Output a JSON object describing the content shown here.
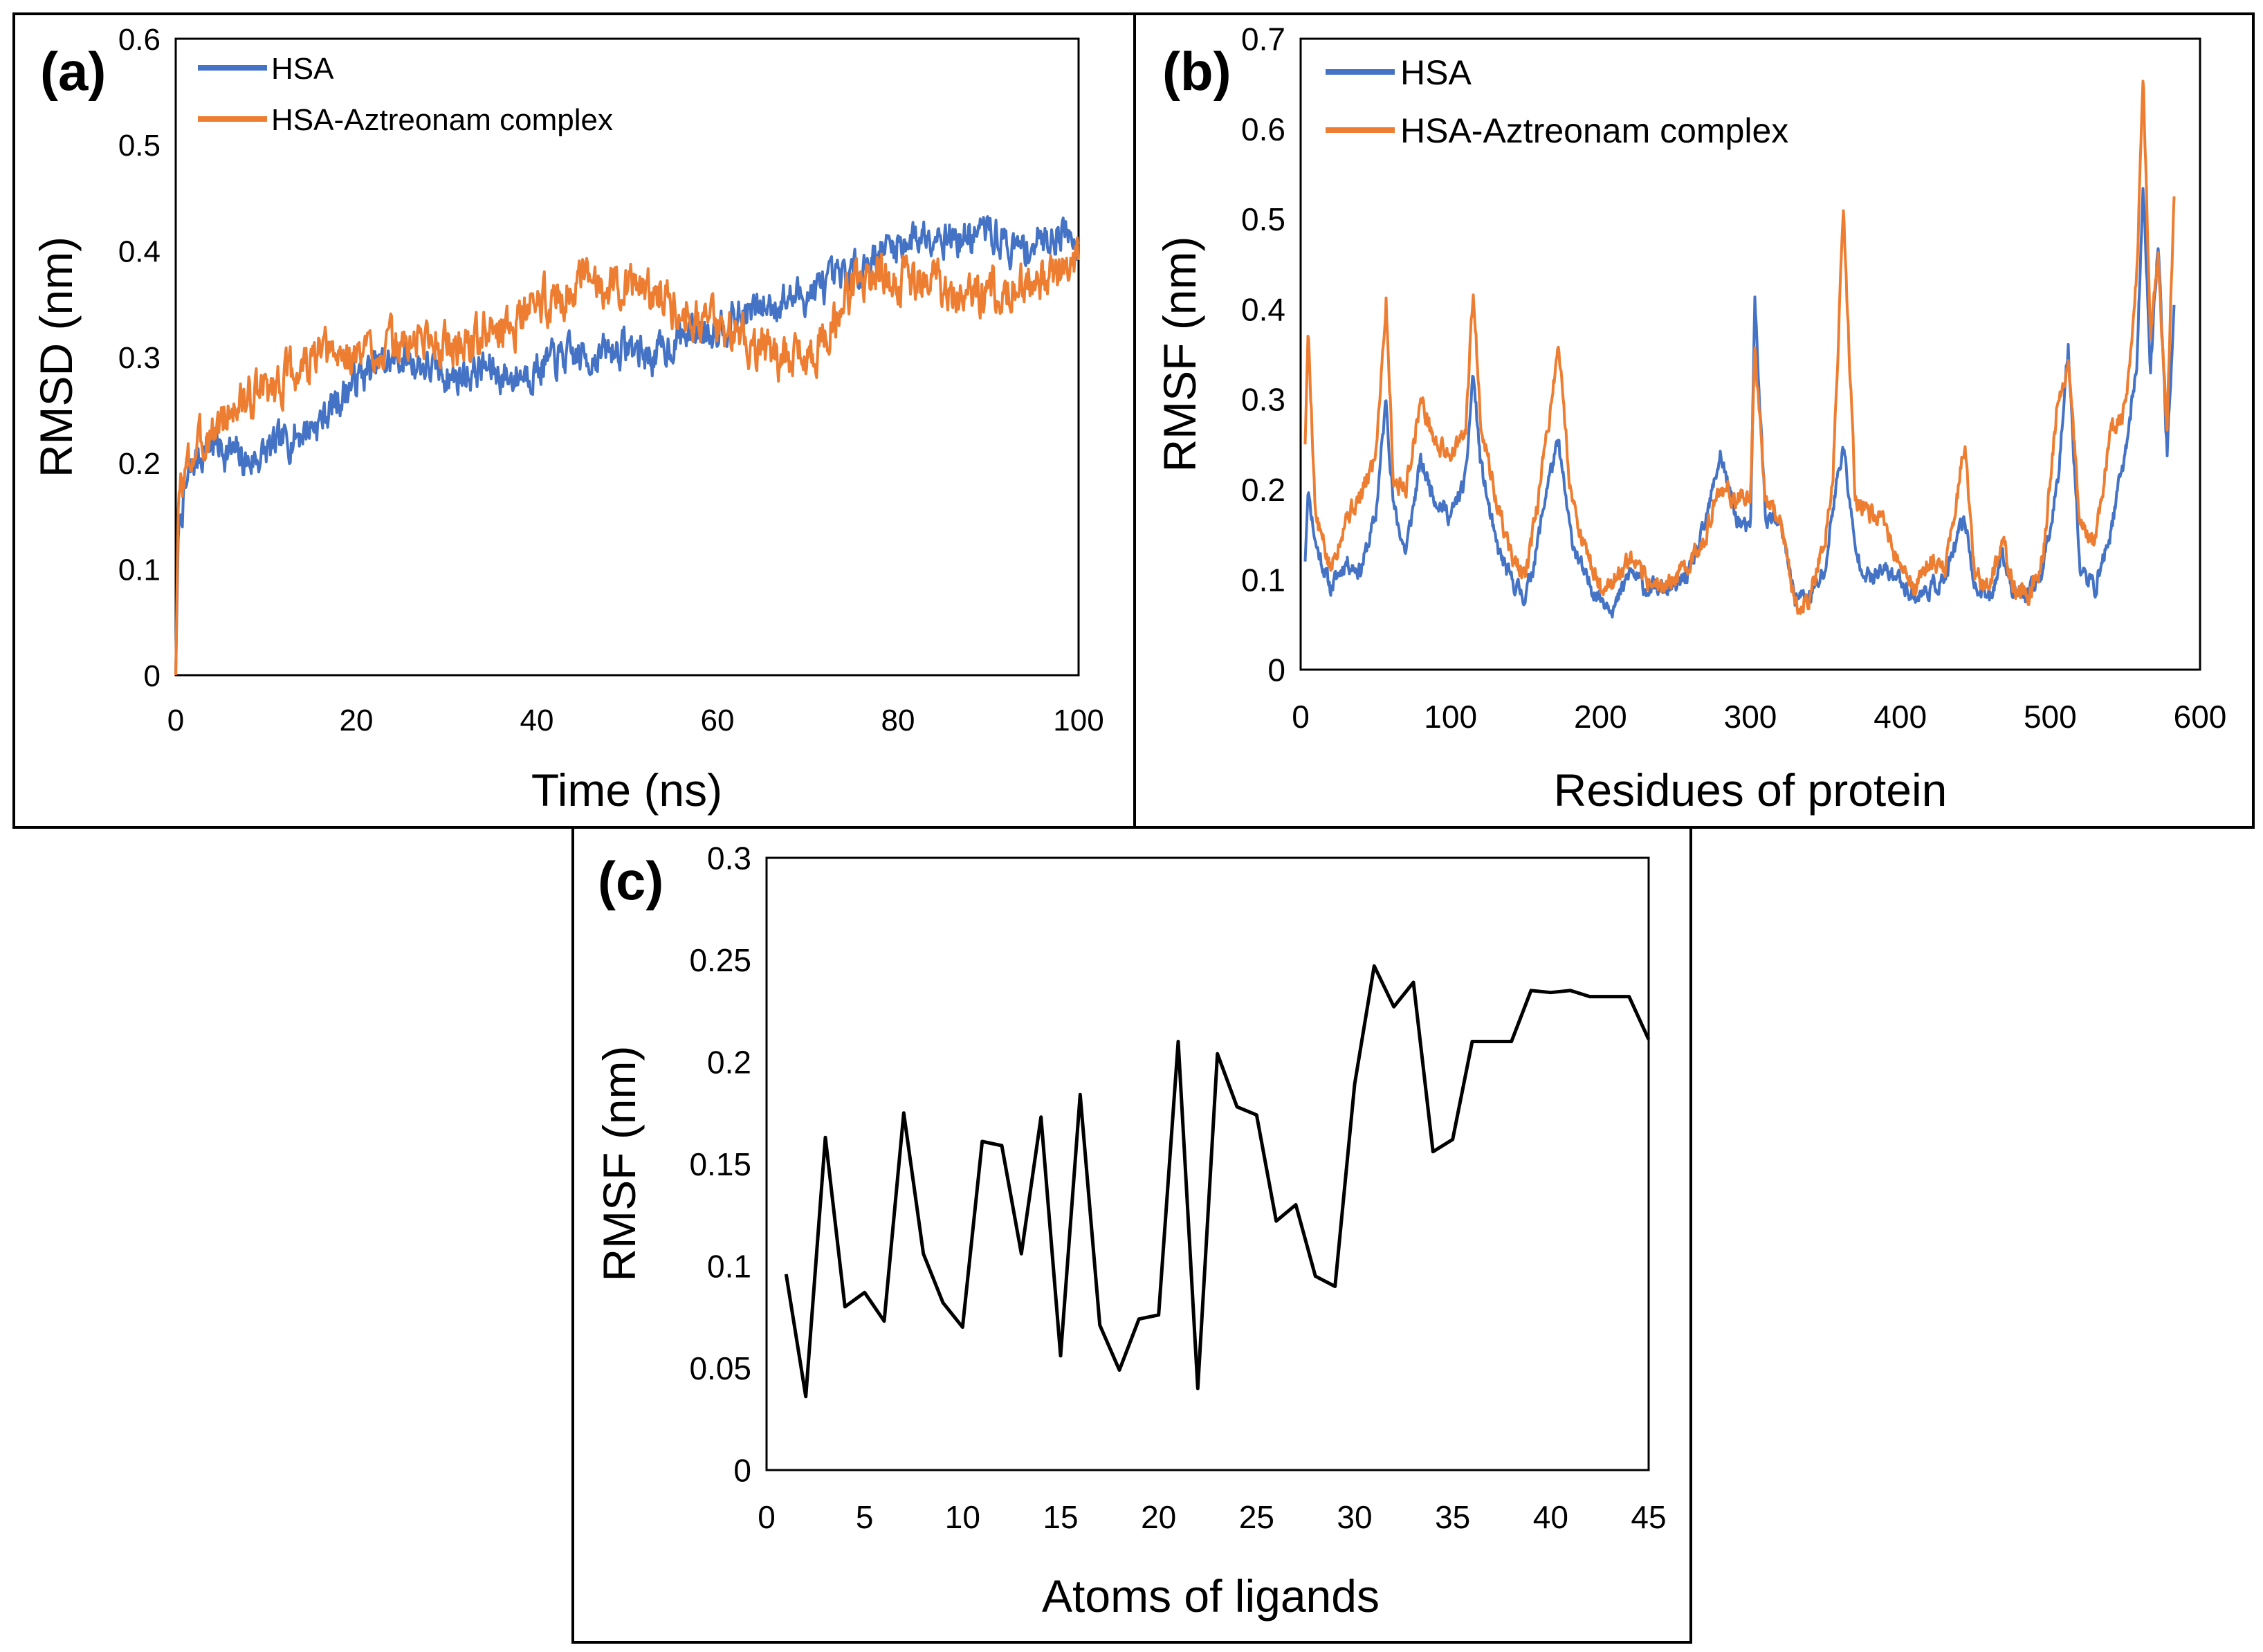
{
  "figure": {
    "background": "#ffffff"
  },
  "chart_data": [
    {
      "panel": "(a)",
      "type": "line",
      "xlabel": "Time (ns)",
      "ylabel": "RMSD (nm)",
      "xlim": [
        0,
        100
      ],
      "ylim": [
        0,
        0.6
      ],
      "xticks": [
        0,
        20,
        40,
        60,
        80,
        100
      ],
      "yticks": [
        0,
        0.1,
        0.2,
        0.3,
        0.4,
        0.5,
        0.6
      ],
      "xtick_labels": [
        "0",
        "20",
        "40",
        "60",
        "80",
        "100"
      ],
      "ytick_labels": [
        "0",
        "0.1",
        "0.2",
        "0.3",
        "0.4",
        "0.5",
        "0.6"
      ],
      "legend_position": "top-left",
      "noisy": true,
      "series": [
        {
          "name": "HSA",
          "color": "#4472c4",
          "noise": 0.014,
          "seed": 7,
          "x": [
            0,
            0.3,
            1,
            2,
            4,
            6,
            8,
            10,
            12,
            14,
            16,
            18,
            20,
            22,
            25,
            28,
            31,
            34,
            37,
            40,
            43,
            46,
            50,
            53,
            56,
            60,
            63,
            66,
            70,
            73,
            75,
            78,
            81,
            84,
            87,
            90,
            93,
            96,
            98,
            100
          ],
          "y": [
            0,
            0.14,
            0.17,
            0.2,
            0.22,
            0.21,
            0.2,
            0.21,
            0.22,
            0.23,
            0.24,
            0.26,
            0.28,
            0.29,
            0.3,
            0.29,
            0.28,
            0.29,
            0.28,
            0.29,
            0.3,
            0.3,
            0.31,
            0.3,
            0.32,
            0.33,
            0.34,
            0.35,
            0.36,
            0.37,
            0.38,
            0.4,
            0.41,
            0.42,
            0.41,
            0.42,
            0.4,
            0.41,
            0.42,
            0.41
          ]
        },
        {
          "name": "HSA-Aztreonam complex",
          "color": "#ed7d31",
          "noise": 0.017,
          "seed": 3,
          "x": [
            0,
            0.3,
            1,
            2,
            4,
            6,
            8,
            10,
            12,
            14,
            16,
            18,
            20,
            22,
            25,
            28,
            31,
            34,
            37,
            40,
            43,
            46,
            50,
            53,
            56,
            60,
            63,
            66,
            70,
            73,
            75,
            78,
            81,
            84,
            87,
            90,
            93,
            96,
            98,
            100
          ],
          "y": [
            0,
            0.17,
            0.19,
            0.21,
            0.23,
            0.25,
            0.26,
            0.27,
            0.28,
            0.29,
            0.3,
            0.3,
            0.3,
            0.31,
            0.31,
            0.32,
            0.31,
            0.32,
            0.33,
            0.35,
            0.36,
            0.37,
            0.37,
            0.36,
            0.35,
            0.33,
            0.32,
            0.3,
            0.3,
            0.33,
            0.37,
            0.38,
            0.37,
            0.37,
            0.36,
            0.36,
            0.37,
            0.37,
            0.38,
            0.39
          ]
        }
      ]
    },
    {
      "panel": "(b)",
      "type": "line",
      "xlabel": "Residues of protein",
      "ylabel": "RMSF (nm)",
      "xlim": [
        0,
        600
      ],
      "ylim": [
        0,
        0.7
      ],
      "xticks": [
        0,
        100,
        200,
        300,
        400,
        500,
        600
      ],
      "yticks": [
        0,
        0.1,
        0.2,
        0.3,
        0.4,
        0.5,
        0.6,
        0.7
      ],
      "xtick_labels": [
        "0",
        "100",
        "200",
        "300",
        "400",
        "500",
        "600"
      ],
      "ytick_labels": [
        "0",
        "0.1",
        "0.2",
        "0.3",
        "0.4",
        "0.5",
        "0.6",
        "0.7"
      ],
      "legend_position": "top-left",
      "noisy": true,
      "series": [
        {
          "name": "HSA",
          "color": "#4472c4",
          "noise": 0.008,
          "seed": 11,
          "x": [
            3,
            5,
            10,
            20,
            30,
            40,
            50,
            57,
            62,
            70,
            80,
            90,
            100,
            110,
            115,
            120,
            130,
            140,
            150,
            157,
            165,
            172,
            180,
            190,
            200,
            210,
            220,
            230,
            240,
            250,
            260,
            270,
            280,
            290,
            300,
            303,
            310,
            320,
            330,
            340,
            350,
            355,
            362,
            370,
            380,
            390,
            400,
            410,
            420,
            430,
            443,
            450,
            460,
            468,
            475,
            485,
            495,
            505,
            512,
            520,
            530,
            540,
            550,
            558,
            562,
            567,
            572,
            578,
            583
          ],
          "y": [
            0.12,
            0.2,
            0.14,
            0.09,
            0.12,
            0.11,
            0.17,
            0.3,
            0.18,
            0.13,
            0.23,
            0.19,
            0.17,
            0.21,
            0.33,
            0.23,
            0.14,
            0.1,
            0.08,
            0.13,
            0.21,
            0.25,
            0.15,
            0.1,
            0.08,
            0.07,
            0.11,
            0.09,
            0.09,
            0.09,
            0.11,
            0.16,
            0.24,
            0.17,
            0.15,
            0.41,
            0.17,
            0.16,
            0.08,
            0.08,
            0.11,
            0.18,
            0.25,
            0.13,
            0.1,
            0.11,
            0.1,
            0.08,
            0.09,
            0.1,
            0.17,
            0.09,
            0.08,
            0.13,
            0.09,
            0.08,
            0.11,
            0.21,
            0.36,
            0.11,
            0.09,
            0.15,
            0.24,
            0.34,
            0.54,
            0.33,
            0.48,
            0.24,
            0.41
          ]
        },
        {
          "name": "HSA-Aztreonam complex",
          "color": "#ed7d31",
          "noise": 0.009,
          "seed": 5,
          "x": [
            3,
            5,
            10,
            20,
            30,
            40,
            50,
            57,
            62,
            70,
            80,
            90,
            100,
            110,
            115,
            120,
            130,
            140,
            150,
            157,
            165,
            172,
            180,
            190,
            200,
            210,
            220,
            230,
            240,
            250,
            260,
            270,
            280,
            290,
            300,
            303,
            310,
            320,
            330,
            340,
            350,
            355,
            362,
            370,
            380,
            390,
            400,
            410,
            420,
            430,
            443,
            450,
            460,
            468,
            475,
            485,
            495,
            505,
            512,
            520,
            530,
            540,
            550,
            558,
            562,
            567,
            572,
            578,
            583
          ],
          "y": [
            0.25,
            0.38,
            0.17,
            0.11,
            0.17,
            0.19,
            0.24,
            0.41,
            0.21,
            0.2,
            0.3,
            0.25,
            0.24,
            0.26,
            0.42,
            0.28,
            0.19,
            0.13,
            0.1,
            0.17,
            0.27,
            0.36,
            0.2,
            0.13,
            0.09,
            0.1,
            0.12,
            0.1,
            0.09,
            0.1,
            0.12,
            0.15,
            0.2,
            0.19,
            0.19,
            0.36,
            0.19,
            0.17,
            0.07,
            0.08,
            0.15,
            0.21,
            0.51,
            0.19,
            0.17,
            0.16,
            0.11,
            0.09,
            0.12,
            0.11,
            0.25,
            0.1,
            0.09,
            0.15,
            0.09,
            0.08,
            0.12,
            0.3,
            0.34,
            0.16,
            0.14,
            0.26,
            0.29,
            0.44,
            0.66,
            0.36,
            0.46,
            0.26,
            0.55
          ]
        }
      ]
    },
    {
      "panel": "(c)",
      "type": "line",
      "xlabel": "Atoms of ligands",
      "ylabel": "RMSF (nm)",
      "xlim": [
        0,
        45
      ],
      "ylim": [
        0,
        0.3
      ],
      "xticks": [
        0,
        5,
        10,
        15,
        20,
        25,
        30,
        35,
        40,
        45
      ],
      "yticks": [
        0,
        0.05,
        0.1,
        0.15,
        0.2,
        0.25,
        0.3
      ],
      "xtick_labels": [
        "0",
        "5",
        "10",
        "15",
        "20",
        "25",
        "30",
        "35",
        "40",
        "45"
      ],
      "ytick_labels": [
        "0",
        "0.05",
        "0.1",
        "0.15",
        "0.2",
        "0.25",
        "0.3"
      ],
      "noisy": false,
      "series": [
        {
          "name": "RMSF",
          "color": "#000000",
          "x": [
            1,
            2,
            3,
            4,
            5,
            6,
            7,
            8,
            9,
            10,
            11,
            12,
            13,
            14,
            15,
            16,
            17,
            18,
            19,
            20,
            21,
            22,
            23,
            24,
            25,
            26,
            27,
            28,
            29,
            30,
            31,
            32,
            33,
            34,
            35,
            36,
            37,
            38,
            39,
            40,
            41,
            42,
            43,
            44,
            45
          ],
          "y": [
            0.096,
            0.036,
            0.163,
            0.08,
            0.087,
            0.073,
            0.175,
            0.106,
            0.082,
            0.07,
            0.161,
            0.159,
            0.106,
            0.173,
            0.056,
            0.184,
            0.071,
            0.049,
            0.074,
            0.076,
            0.21,
            0.04,
            0.204,
            0.178,
            0.174,
            0.122,
            0.13,
            0.095,
            0.09,
            0.189,
            0.247,
            0.227,
            0.239,
            0.156,
            0.162,
            0.21,
            0.21,
            0.21,
            0.235,
            0.234,
            0.235,
            0.232,
            0.232,
            0.232,
            0.211
          ]
        }
      ]
    }
  ]
}
